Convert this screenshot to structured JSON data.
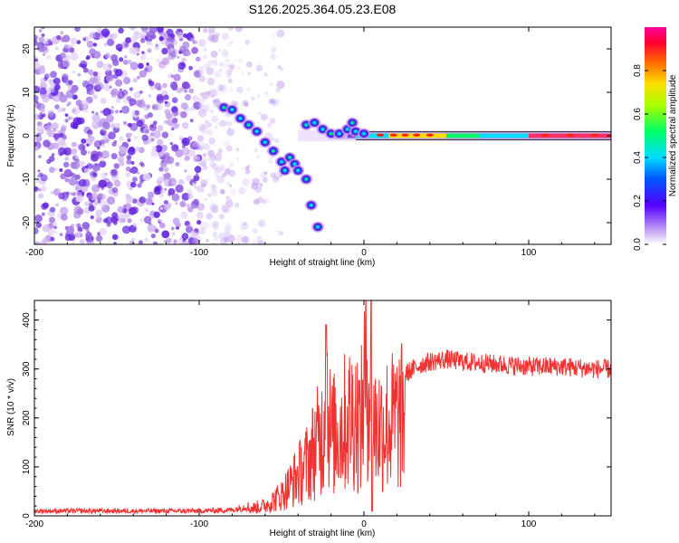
{
  "title": "S126.2025.364.05.23.E08",
  "chart_data": [
    {
      "type": "heatmap",
      "name": "spectrogram",
      "xlabel": "Height of straight line (km)",
      "ylabel": "Frequency (Hz)",
      "xlim": [
        -200,
        150
      ],
      "ylim": [
        -25,
        25
      ],
      "xticks": [
        -200,
        -100,
        0,
        100
      ],
      "yticks": [
        -20,
        -10,
        0,
        10,
        20
      ],
      "colorbar": {
        "label": "Normalized spectral amplitude",
        "range": [
          0,
          1
        ],
        "ticks": [
          0.0,
          0.2,
          0.4,
          0.6,
          0.8
        ]
      },
      "features": {
        "noise_region_km": [
          -200,
          -80
        ],
        "signal_ridge_hz_vs_km": [
          [
            -85,
            6.5
          ],
          [
            -80,
            6
          ],
          [
            -75,
            4
          ],
          [
            -70,
            2.5
          ],
          [
            -65,
            1
          ],
          [
            -60,
            -1.5
          ],
          [
            -55,
            -3.5
          ],
          [
            -50,
            -6
          ],
          [
            -48,
            -8
          ],
          [
            -45,
            -5
          ],
          [
            -42,
            -6.5
          ],
          [
            -40,
            -8
          ],
          [
            -35,
            -10
          ],
          [
            -32,
            -16
          ],
          [
            -28,
            -21
          ],
          [
            -35,
            2.5
          ],
          [
            -30,
            3
          ],
          [
            -25,
            1.5
          ],
          [
            -20,
            0.5
          ],
          [
            -15,
            0.5
          ],
          [
            -10,
            1.5
          ],
          [
            -7,
            3
          ],
          [
            -5,
            1
          ],
          [
            0,
            0.5
          ],
          [
            20,
            0.2
          ],
          [
            50,
            0.1
          ],
          [
            100,
            0
          ],
          [
            150,
            0
          ]
        ],
        "carrier_line_hz": 0
      }
    },
    {
      "type": "line",
      "name": "snr",
      "xlabel": "Height of straight line (km)",
      "ylabel": "SNR (10 * v/v)",
      "xlim": [
        -200,
        150
      ],
      "ylim": [
        0,
        440
      ],
      "xticks": [
        -200,
        -100,
        0,
        100
      ],
      "yticks": [
        0,
        100,
        200,
        300,
        400
      ],
      "series": [
        {
          "name": "SNR",
          "color": "#ee3333",
          "x": [
            -200,
            -150,
            -100,
            -80,
            -70,
            -60,
            -50,
            -45,
            -40,
            -35,
            -30,
            -25,
            -23,
            -20,
            -15,
            -10,
            -5,
            -2,
            0,
            2,
            5,
            7,
            10,
            15,
            20,
            25,
            30,
            35,
            40,
            50,
            60,
            80,
            100,
            120,
            140,
            150
          ],
          "y": [
            10,
            10,
            10,
            12,
            20,
            30,
            60,
            90,
            120,
            150,
            200,
            240,
            390,
            230,
            250,
            280,
            300,
            250,
            370,
            440,
            320,
            260,
            260,
            270,
            280,
            290,
            300,
            310,
            315,
            320,
            315,
            310,
            305,
            305,
            300,
            300
          ]
        }
      ]
    }
  ]
}
